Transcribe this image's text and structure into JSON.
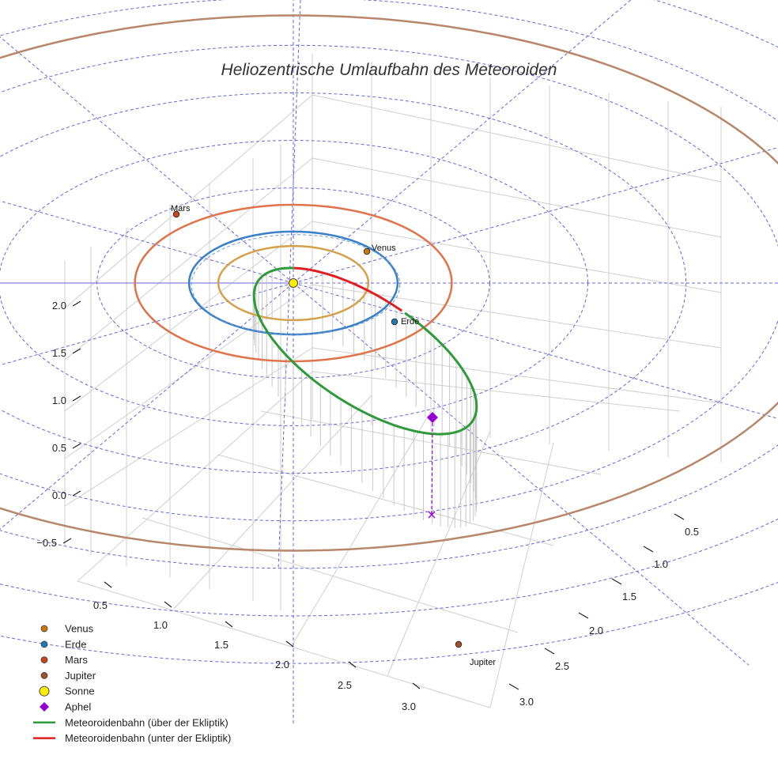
{
  "chart_data": {
    "type": "3d-orbit",
    "title": "Heliozentrische Umlaufbahn des Meteoroiden",
    "z_ticks": [
      "−0.5",
      "0.0",
      "0.5",
      "1.0",
      "1.5",
      "2.0"
    ],
    "x_ticks": [
      "0.5",
      "1.0",
      "1.5",
      "2.0",
      "2.5",
      "3.0"
    ],
    "y_ticks": [
      "0.5",
      "1.0",
      "1.5",
      "2.0",
      "2.5",
      "3.0"
    ],
    "orbit_radii_au": {
      "Venus": 0.72,
      "Erde": 1.0,
      "Mars": 1.52,
      "Jupiter": 5.2
    },
    "ecliptic_grid_rings": [
      2,
      3,
      4,
      5,
      6,
      7,
      8
    ],
    "planets": [
      {
        "name": "Venus",
        "color": "#c87810",
        "orbit_color": "#d4a04a",
        "label": "Venus"
      },
      {
        "name": "Erde",
        "color": "#1f77b4",
        "orbit_color": "#3a7fc8",
        "label": "Erde"
      },
      {
        "name": "Mars",
        "color": "#c8461e",
        "orbit_color": "#e0734a",
        "label": "Mars"
      },
      {
        "name": "Jupiter",
        "color": "#a0522d",
        "orbit_color": "#b8866a",
        "label": "Jupiter"
      }
    ],
    "sun": {
      "name": "Sonne",
      "color": "#ffee00"
    },
    "aphel": {
      "name": "Aphel",
      "color": "#9400d3"
    },
    "meteoroid": {
      "above_color": "#2e9a3a",
      "below_color": "#e02020"
    },
    "grid_color": "#6666dd",
    "legend": [
      {
        "label": "Venus",
        "marker": "dot",
        "color": "#c87810"
      },
      {
        "label": "Erde",
        "marker": "dot",
        "color": "#1f77b4"
      },
      {
        "label": "Mars",
        "marker": "dot",
        "color": "#c8461e"
      },
      {
        "label": "Jupiter",
        "marker": "dot",
        "color": "#a0522d"
      },
      {
        "label": "Sonne",
        "marker": "big-dot",
        "color": "#ffee00"
      },
      {
        "label": "Aphel",
        "marker": "diamond",
        "color": "#9400d3"
      },
      {
        "label": "Meteoroidenbahn (über der Ekliptik)",
        "marker": "line",
        "color": "#2e9a3a"
      },
      {
        "label": "Meteoroidenbahn (unter der Ekliptik)",
        "marker": "line",
        "color": "#e02020"
      }
    ]
  }
}
